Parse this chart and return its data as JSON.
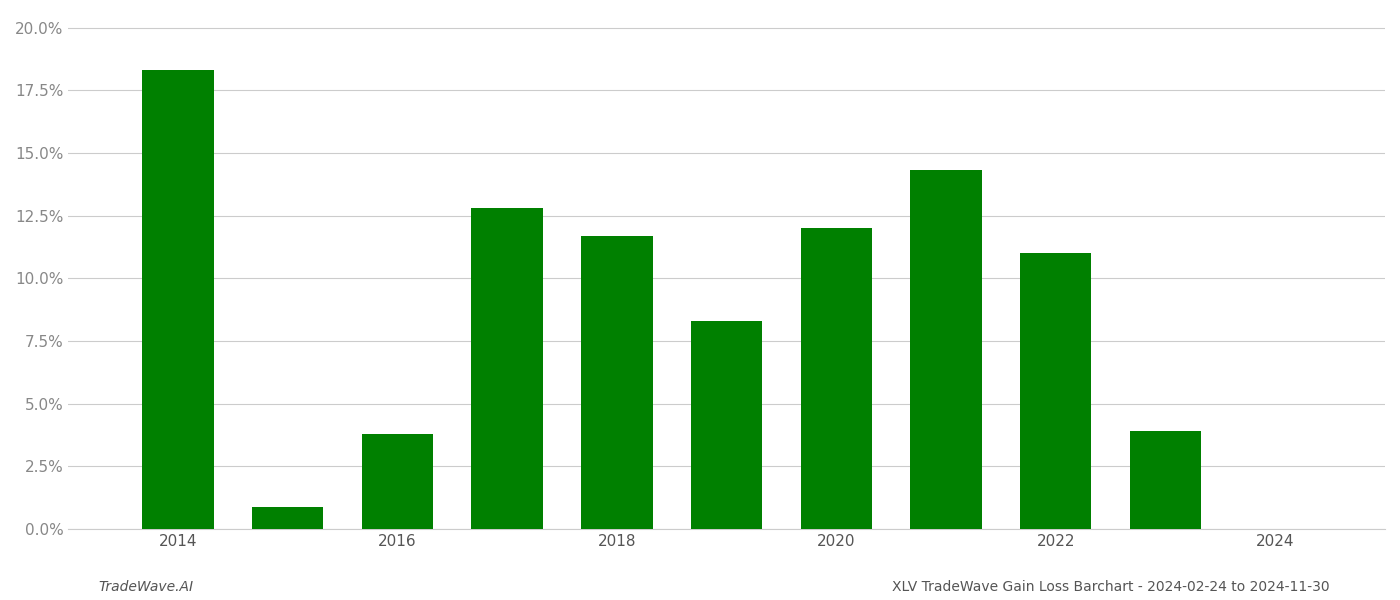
{
  "years": [
    2014,
    2015,
    2016,
    2017,
    2018,
    2019,
    2020,
    2021,
    2022,
    2023,
    2024
  ],
  "values": [
    0.183,
    0.009,
    0.038,
    0.128,
    0.117,
    0.083,
    0.12,
    0.143,
    0.11,
    0.039,
    0.0
  ],
  "bar_color": "#008000",
  "background_color": "#ffffff",
  "grid_color": "#cccccc",
  "ylabel_color": "#888888",
  "xlabel_color": "#555555",
  "ylim": [
    0,
    0.205
  ],
  "yticks": [
    0.0,
    0.025,
    0.05,
    0.075,
    0.1,
    0.125,
    0.15,
    0.175,
    0.2
  ],
  "footer_left": "TradeWave.AI",
  "footer_right": "XLV TradeWave Gain Loss Barchart - 2024-02-24 to 2024-11-30",
  "bar_width": 0.65,
  "xlim_left": 2013.0,
  "xlim_right": 2025.0
}
